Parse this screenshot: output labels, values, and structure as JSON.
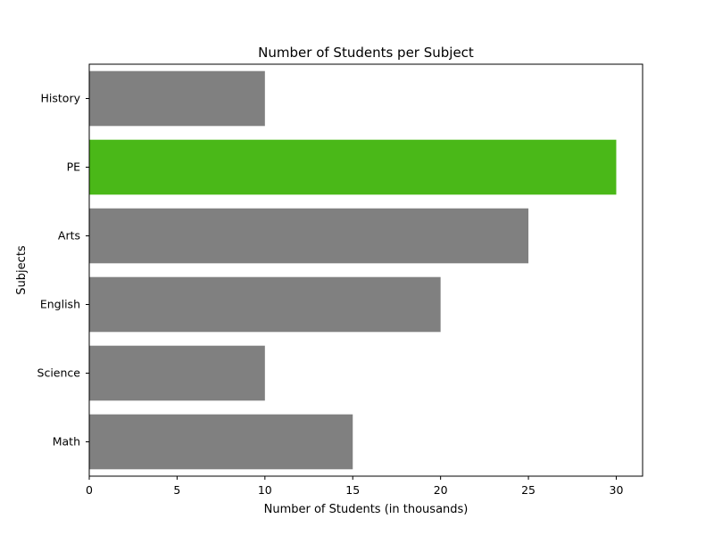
{
  "chart_data": {
    "type": "bar",
    "orientation": "horizontal",
    "title": "Number of Students per Subject",
    "xlabel": "Number of Students (in thousands)",
    "ylabel": "Subjects",
    "categories": [
      "Math",
      "Science",
      "English",
      "Arts",
      "PE",
      "History"
    ],
    "values": [
      15,
      10,
      20,
      25,
      30,
      10
    ],
    "xlim": [
      0,
      31.5
    ],
    "xticks": [
      0,
      5,
      10,
      15,
      20,
      25,
      30
    ],
    "grid": false,
    "legend": "none",
    "colors": {
      "default_bar": "#808080",
      "highlight_bar": "#4ab818",
      "axis": "#000000",
      "background": "#ffffff"
    },
    "highlighted_category": "PE"
  }
}
